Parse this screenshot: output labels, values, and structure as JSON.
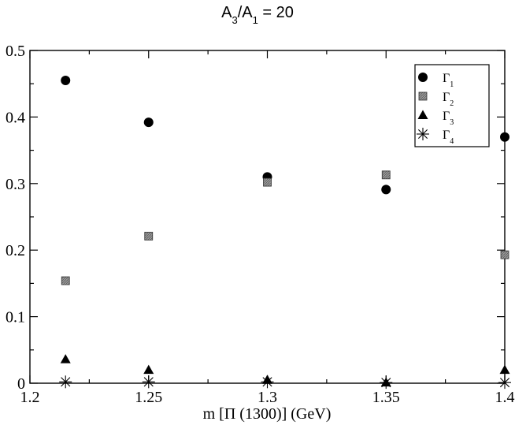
{
  "chart_data": {
    "type": "scatter",
    "title": "A3/A1 = 20",
    "title_parts": {
      "a": "A",
      "sub1": "3",
      "slash": "/A",
      "sub2": "1",
      "rest": " = 20"
    },
    "xlabel": "m [Π (1300)] (GeV)",
    "ylabel": "",
    "xlim": [
      1.2,
      1.4
    ],
    "ylim": [
      0,
      0.5
    ],
    "x_ticks": [
      1.2,
      1.25,
      1.3,
      1.35,
      1.4
    ],
    "x_tick_labels": [
      "1.2",
      "1.25",
      "1.3",
      "1.35",
      "1.4"
    ],
    "y_ticks": [
      0,
      0.1,
      0.2,
      0.3,
      0.4,
      0.5
    ],
    "y_tick_labels": [
      "0",
      "0.1",
      "0.2",
      "0.3",
      "0.4",
      "0.5"
    ],
    "grid": false,
    "legend_position": "top-right",
    "series": [
      {
        "name": "Γ1",
        "label_main": "Γ",
        "label_sub": "1",
        "marker": "circle",
        "color": "#000000",
        "points": [
          [
            1.215,
            0.455
          ],
          [
            1.25,
            0.392
          ],
          [
            1.3,
            0.31
          ],
          [
            1.35,
            0.291
          ],
          [
            1.4,
            0.37
          ]
        ]
      },
      {
        "name": "Γ2",
        "label_main": "Γ",
        "label_sub": "2",
        "marker": "square",
        "color": "#808080",
        "points": [
          [
            1.215,
            0.154
          ],
          [
            1.25,
            0.221
          ],
          [
            1.3,
            0.302
          ],
          [
            1.35,
            0.313
          ],
          [
            1.4,
            0.193
          ]
        ]
      },
      {
        "name": "Γ3",
        "label_main": "Γ",
        "label_sub": "3",
        "marker": "triangle",
        "color": "#000000",
        "points": [
          [
            1.215,
            0.036
          ],
          [
            1.25,
            0.02
          ],
          [
            1.3,
            0.005
          ],
          [
            1.35,
            0.001
          ],
          [
            1.4,
            0.02
          ]
        ]
      },
      {
        "name": "Γ4",
        "label_main": "Γ",
        "label_sub": "4",
        "marker": "star",
        "color": "#000000",
        "points": [
          [
            1.215,
            0.002
          ],
          [
            1.25,
            0.002
          ],
          [
            1.3,
            0.002
          ],
          [
            1.35,
            0.001
          ],
          [
            1.4,
            0.001
          ]
        ]
      }
    ]
  }
}
